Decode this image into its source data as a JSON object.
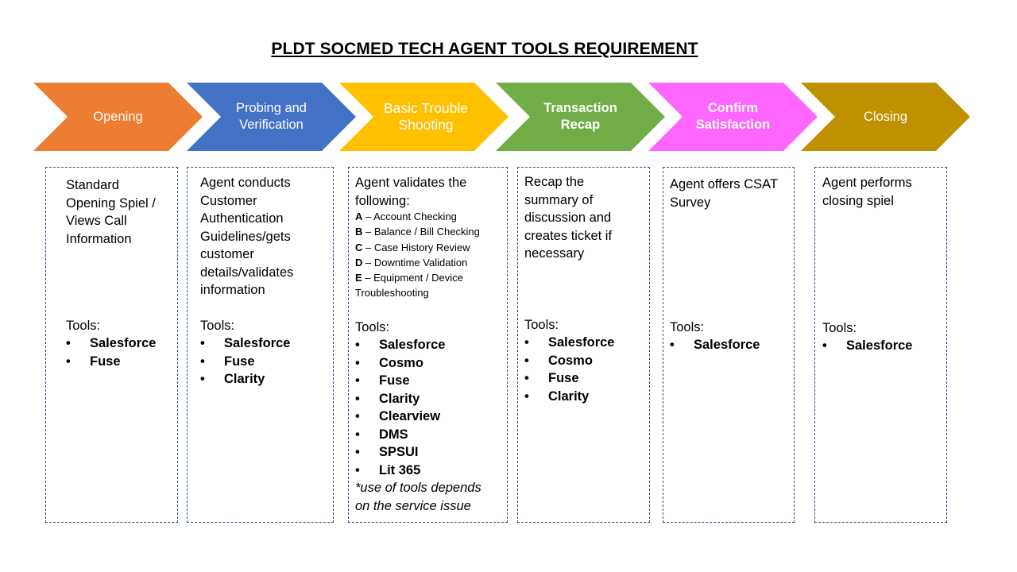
{
  "title": "PLDT SOCMED TECH AGENT TOOLS REQUIREMENT",
  "colors": {
    "opening": "#ED7D31",
    "probing": "#4472C4",
    "troubleshooting": "#FFC000",
    "recap": "#70AD47",
    "satisfaction": "#FF66FF",
    "closing": "#BF9000",
    "panel_border": "#2F4F86"
  },
  "stages": [
    {
      "label": "Opening",
      "description": "Standard Opening Spiel / Views Call Information",
      "tools_label": "Tools:",
      "tools": [
        "Salesforce",
        "Fuse"
      ]
    },
    {
      "label": "Probing and Verification",
      "description": "Agent conducts Customer Authentication Guidelines/gets customer details/validates information",
      "tools_label": "Tools:",
      "tools": [
        "Salesforce",
        "Fuse",
        "Clarity"
      ]
    },
    {
      "label": "Basic Trouble Shooting",
      "description": "Agent validates the following:",
      "checks": [
        {
          "key": "A",
          "text": " – Account  Checking"
        },
        {
          "key": "B",
          "text": " – Balance / Bill Checking"
        },
        {
          "key": "C",
          "text": " – Case History Review"
        },
        {
          "key": "D",
          "text": " – Downtime  Validation"
        },
        {
          "key": "E",
          "text": " – Equipment  / Device Troubleshooting"
        }
      ],
      "tools_label": "Tools:",
      "tools": [
        "Salesforce",
        "Cosmo",
        "Fuse",
        "Clarity",
        "Clearview",
        "DMS",
        "SPSUI",
        "Lit 365"
      ],
      "note": "*use of tools depends on the service issue"
    },
    {
      "label": "Transaction Recap",
      "description": "Recap the summary of discussion and creates ticket if necessary",
      "tools_label": "Tools:",
      "tools": [
        "Salesforce",
        "Cosmo",
        "Fuse",
        "Clarity"
      ]
    },
    {
      "label": "Confirm Satisfaction",
      "description": "Agent offers CSAT Survey",
      "tools_label": "Tools:",
      "tools": [
        "Salesforce"
      ]
    },
    {
      "label": "Closing",
      "description": "Agent performs closing spiel",
      "tools_label": "Tools:",
      "tools": [
        "Salesforce"
      ]
    }
  ]
}
